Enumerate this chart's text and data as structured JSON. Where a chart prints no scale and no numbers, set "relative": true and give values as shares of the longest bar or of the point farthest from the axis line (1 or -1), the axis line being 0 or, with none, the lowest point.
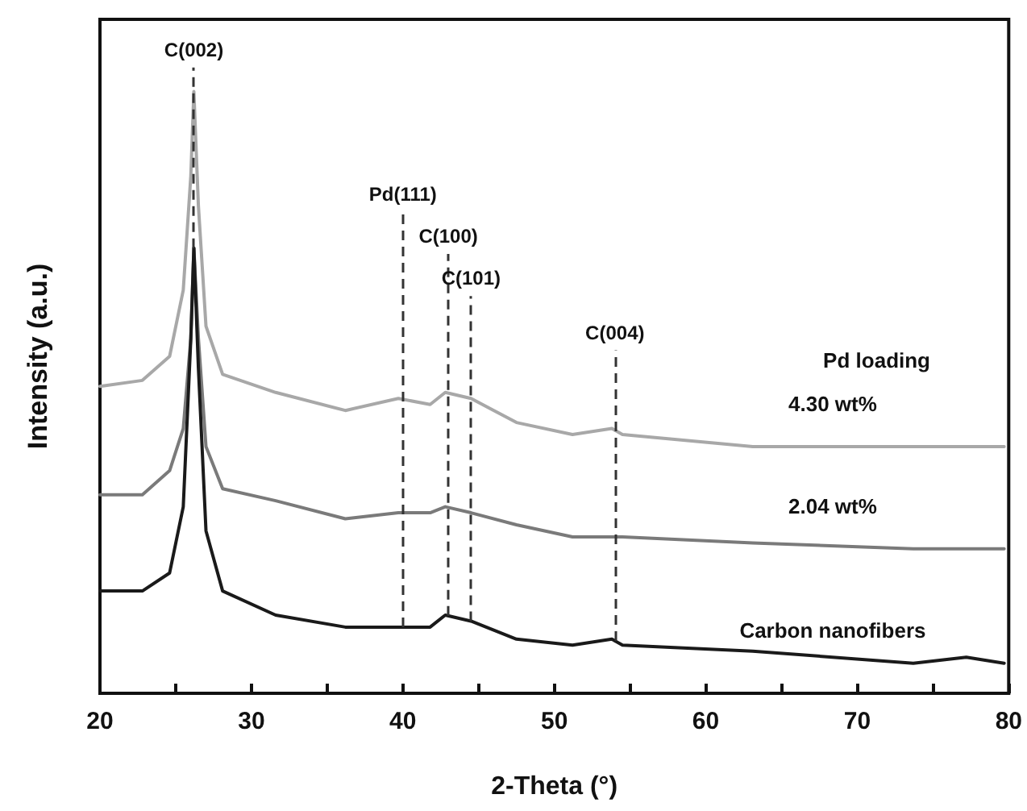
{
  "chart_data": {
    "type": "line",
    "relative": true,
    "xlabel": "2-Theta (°)",
    "ylabel": "Intensity (a.u.)",
    "legend_title": "Pd loading",
    "legend": false,
    "grid": false,
    "marker": "none",
    "line_style": "solid",
    "x": [
      20,
      22.8,
      24.6,
      25.5,
      26.0,
      26.2,
      26.5,
      27.0,
      28.1,
      31.6,
      36.2,
      39.7,
      41.8,
      42.8,
      44.5,
      47.5,
      51.2,
      53.8,
      54.5,
      63.1,
      73.7,
      77.2,
      79.7
    ],
    "xlim": [
      20,
      80
    ],
    "xticks": [
      20,
      {
        "value": 25,
        "label": null
      },
      30,
      {
        "value": 35,
        "label": null
      },
      40,
      {
        "value": 45,
        "label": null
      },
      50,
      {
        "value": 55,
        "label": null
      },
      60,
      {
        "value": 65,
        "label": null
      },
      70,
      {
        "value": 75,
        "label": null
      },
      80
    ],
    "series": [
      {
        "name": "4.30 wt%",
        "color": "#a8a8a8",
        "values": [
          0.51,
          0.52,
          0.56,
          0.67,
          0.86,
          1,
          0.81,
          0.61,
          0.53,
          0.5,
          0.47,
          0.49,
          0.48,
          0.5,
          0.49,
          0.45,
          0.43,
          0.44,
          0.43,
          0.41,
          0.41,
          0.41,
          0.41
        ]
      },
      {
        "name": "2.04 wt%",
        "color": "#7a7a7a",
        "values": [
          0.33,
          0.33,
          0.37,
          0.44,
          0.59,
          0.74,
          0.59,
          0.41,
          0.34,
          0.32,
          0.29,
          0.3,
          0.3,
          0.31,
          0.3,
          0.28,
          0.26,
          0.26,
          0.26,
          0.25,
          0.24,
          0.24,
          0.24
        ]
      },
      {
        "name": "Carbon nanofibers",
        "color": "#1a1a1a",
        "values": [
          0.17,
          0.17,
          0.2,
          0.31,
          0.59,
          0.74,
          0.54,
          0.27,
          0.17,
          0.13,
          0.11,
          0.11,
          0.11,
          0.13,
          0.12,
          0.09,
          0.08,
          0.09,
          0.08,
          0.07,
          0.05,
          0.06,
          0.05
        ]
      }
    ],
    "ref_lines": [
      {
        "axis": "x",
        "value": 26.2,
        "label": "C(002)",
        "color": "#333333",
        "line_style": "dashed"
      },
      {
        "axis": "x",
        "value": 40,
        "label": "Pd(111)",
        "color": "#333333",
        "line_style": "dashed"
      },
      {
        "axis": "x",
        "value": 43,
        "label": "C(100)",
        "color": "#333333",
        "line_style": "dashed"
      },
      {
        "axis": "x",
        "value": 44.5,
        "label": "C(101)",
        "color": "#333333",
        "line_style": "dashed"
      },
      {
        "axis": "x",
        "value": 54,
        "label": "C(004)",
        "color": "#333333",
        "line_style": "dashed"
      }
    ]
  }
}
